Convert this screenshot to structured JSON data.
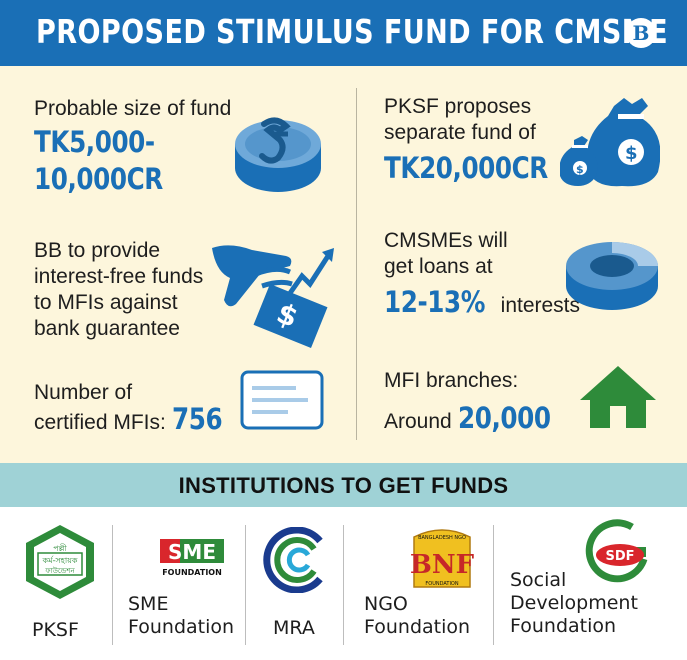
{
  "header": {
    "title": "PROPOSED STIMULUS FUND FOR CMSME",
    "logo_letter": "B"
  },
  "left": {
    "fund_size": {
      "label": "Probable size of fund",
      "value_line1": "TK5,000-",
      "value_line2": "10,000CR",
      "icon": "taka-coin-icon"
    },
    "bb": {
      "line1": "BB to provide",
      "line2": "interest-free funds",
      "line3": "to MFIs against",
      "line4": "bank guarantee",
      "icon": "hand-money-growth-icon"
    },
    "mfis": {
      "line1": "Number of",
      "line2": "certified MFIs:",
      "value": "756",
      "icon": "certificate-card-icon"
    }
  },
  "right": {
    "pksf": {
      "line1": "PKSF proposes",
      "line2": "separate fund of",
      "value": "TK20,000CR",
      "icon": "money-bags-icon"
    },
    "loans": {
      "line1": "CMSMEs will",
      "line2": "get loans at",
      "value": "12-13%",
      "suffix": "interests",
      "icon": "ring-chart-icon"
    },
    "branches": {
      "line1": "MFI branches:",
      "line2": "Around",
      "value": "20,000",
      "icon": "house-icon"
    }
  },
  "section": {
    "title": "INSTITUTIONS TO GET FUNDS"
  },
  "institutions": [
    {
      "label": "PKSF",
      "logo_text_1": "পল্লী",
      "logo_text_2": "কর্ম-সহায়ক",
      "logo_text_3": "ফাউন্ডেশন"
    },
    {
      "label_1": "SME",
      "label_2": "Foundation",
      "logo_text": "SME",
      "logo_sub": "FOUNDATION"
    },
    {
      "label": "MRA"
    },
    {
      "label_1": "NGO",
      "label_2": "Foundation",
      "logo_top": "BANGLADESH NGO",
      "logo_text": "BNF",
      "logo_sub": "FOUNDATION"
    },
    {
      "label_1": "Social",
      "label_2": "Development",
      "label_3": "Foundation",
      "logo_text": "SDF"
    }
  ],
  "colors": {
    "brand_blue": "#1a6fb6",
    "background": "#fdf6dc",
    "section_bar": "#9fd2d6",
    "house_green": "#2e8b3a"
  }
}
